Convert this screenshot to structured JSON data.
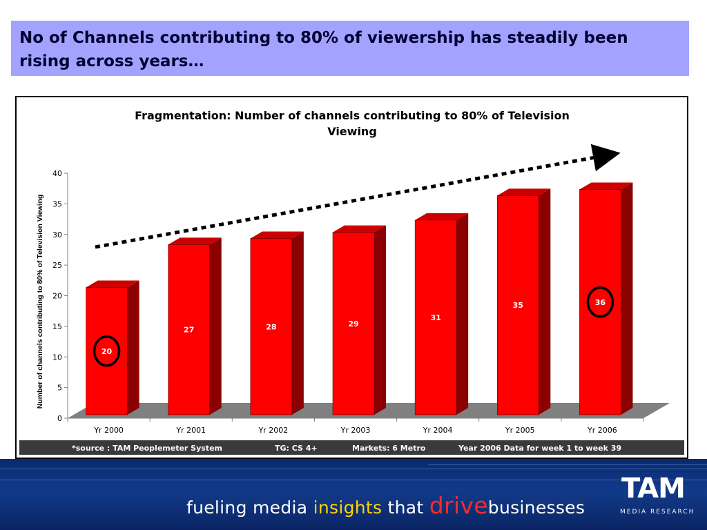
{
  "headline": "No of Channels contributing to 80% of viewership has steadily been rising across years…",
  "colors": {
    "headline_bg": "#a3a3ff",
    "bar": "#ff0000",
    "bar_side": "#8b0000",
    "bar_top": "#cc0000",
    "floor": "#808080",
    "footer_bar": "#3a3a3a",
    "footer_bg": "#0a2a6e",
    "highlight_circle": "#000000"
  },
  "chart_data": {
    "type": "bar",
    "title": "Fragmentation: Number of channels contributing to 80% of Television Viewing",
    "ylabel": "Number of channels contributing to 80%  of Television Viewing",
    "xlabel": "",
    "categories": [
      "Yr 2000",
      "Yr 2001",
      "Yr 2002",
      "Yr 2003",
      "Yr 2004",
      "Yr 2005",
      "Yr 2006"
    ],
    "values": [
      20,
      27,
      28,
      29,
      31,
      35,
      36
    ],
    "data_labels": [
      "20",
      "27",
      "28",
      "29",
      "31",
      "35",
      "36"
    ],
    "highlighted": [
      "Yr 2000",
      "Yr 2006"
    ],
    "ylim": [
      0,
      40
    ],
    "yticks": [
      "0",
      "5",
      "10",
      "15",
      "20",
      "25",
      "30",
      "35",
      "40"
    ],
    "trend_arrow": "rising",
    "grid": false,
    "style": "3d"
  },
  "source_bar": {
    "source": "*source : TAM Peoplemeter System",
    "tg": "TG: CS 4+",
    "markets": "Markets: 6 Metro",
    "period": "Year 2006 Data for week 1 to week 39"
  },
  "footer": {
    "tagline_1": "fueling media ",
    "tagline_insights": "insights",
    "tagline_2": " that ",
    "tagline_drive": "drive",
    "tagline_3": "businesses",
    "logo_word": "TAM",
    "logo_sub": "MEDIA RESEARCH"
  }
}
